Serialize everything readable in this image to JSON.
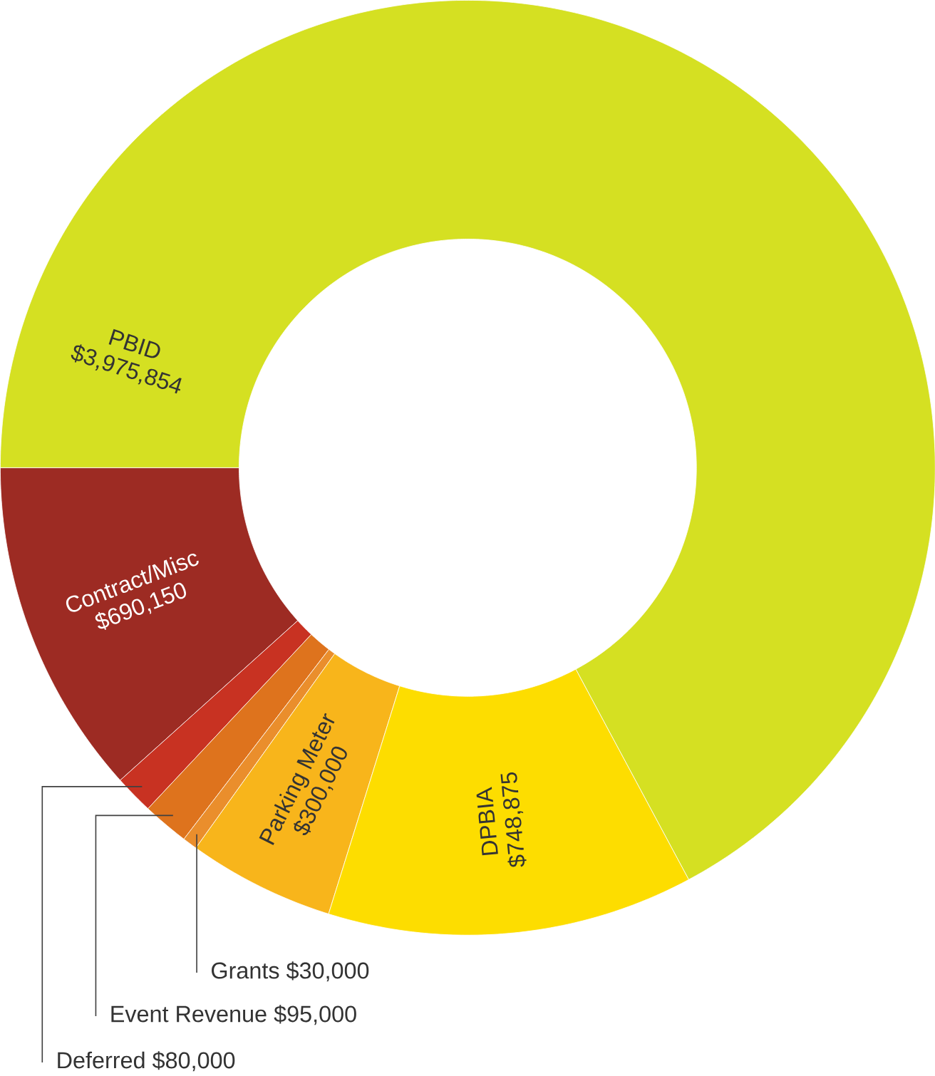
{
  "chart_data": {
    "type": "donut",
    "categories": [
      "Contract/Misc",
      "Deferred",
      "Event Revenue",
      "Grants",
      "Parking Meter",
      "DPBIA",
      "PBID"
    ],
    "values": [
      690150,
      80000,
      95000,
      30000,
      300000,
      748875,
      3975854
    ],
    "value_labels": [
      "$690,150",
      "$80,000",
      "$95,000",
      "$30,000",
      "$300,000",
      "$748,875",
      "$3,975,854"
    ],
    "colors": [
      "#9d2b23",
      "#c83222",
      "#de731d",
      "#ea8e2c",
      "#f8b51b",
      "#fddd00",
      "#d5e022"
    ]
  }
}
